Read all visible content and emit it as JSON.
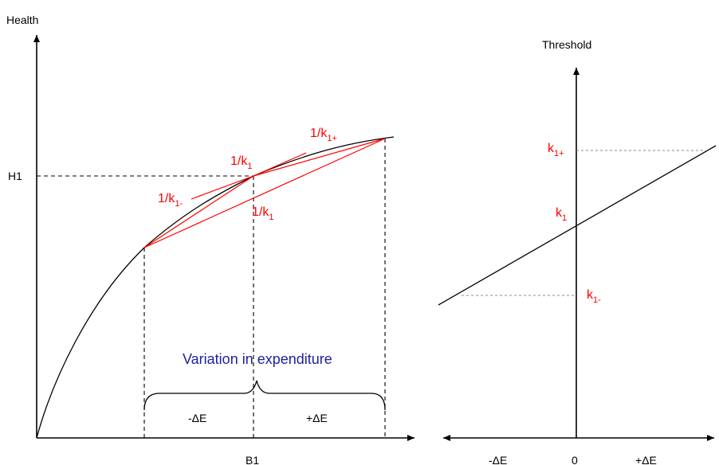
{
  "left_panel": {
    "y_axis_label": "Health",
    "h1_label": "H1",
    "b1_label": "B1",
    "slope_center": {
      "base": "1/k",
      "sub": "1"
    },
    "slope_minus": {
      "base": "1/k",
      "sub": "1-"
    },
    "slope_plus": {
      "base": "1/k",
      "sub": "1+"
    },
    "slope_chord": {
      "base": "1/k",
      "sub": "1"
    },
    "variation_label": "Variation in expenditure",
    "minus_delta_label": "-ΔE",
    "plus_delta_label": "+ΔE"
  },
  "right_panel": {
    "y_axis_label": "Threshold",
    "k1_plus": {
      "base": "k",
      "sub": "1+"
    },
    "k1": {
      "base": "k",
      "sub": "1"
    },
    "k1_minus": {
      "base": "k",
      "sub": "1-"
    },
    "x_tick_minus": "-ΔE",
    "x_tick_zero": "0",
    "x_tick_plus": "+ΔE"
  },
  "colors": {
    "slope_labels": "#ff0000",
    "variation_label": "#1f1f9f",
    "lines": "#000000"
  }
}
